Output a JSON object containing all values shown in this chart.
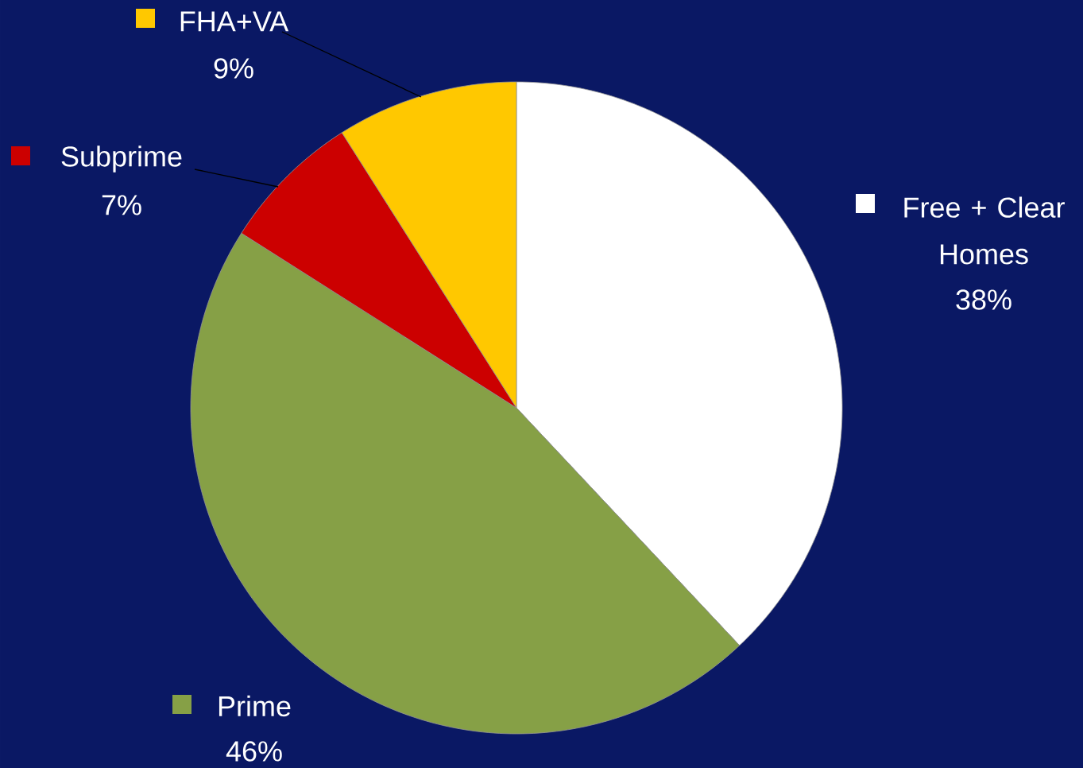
{
  "chart_data": {
    "type": "pie",
    "categories": [
      "Free + Clear Homes",
      "Prime",
      "Subprime",
      "FHA+VA"
    ],
    "values": [
      38,
      46,
      7,
      9
    ],
    "value_labels": [
      "38%",
      "46%",
      "7%",
      "9%"
    ],
    "colors": [
      "#ffffff",
      "#86a046",
      "#cc0000",
      "#ffc800"
    ],
    "legend": "left"
  }
}
